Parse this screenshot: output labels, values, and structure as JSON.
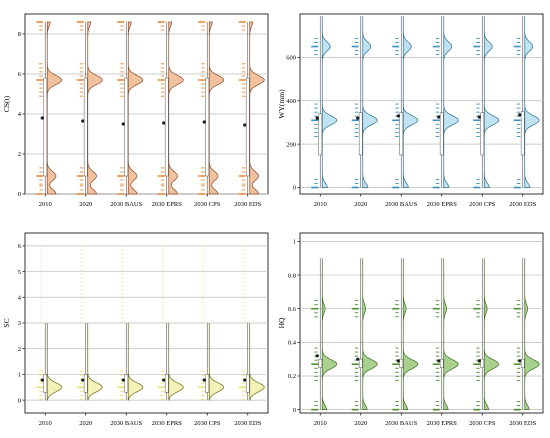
{
  "chart_data": [
    {
      "type": "violin",
      "panel": "top-left",
      "ylabel": "CS(t)",
      "ylim": [
        0,
        9
      ],
      "yticks": [
        0,
        2,
        4,
        6,
        8
      ],
      "grid": true,
      "fill_color": "#f2c29e",
      "line_color": "#8a4b2a",
      "rug_color": "#e58a3c",
      "categories": [
        "2010",
        "2020",
        "2030 BAUS",
        "2030 EPRS",
        "2030 CPS",
        "2030 EDS"
      ],
      "series": [
        {
          "category": "2010",
          "mean": 3.8,
          "q1": 0.9,
          "median": 5.6,
          "q3": 5.8,
          "whisker_low": 0.0,
          "whisker_high": 8.6,
          "modes": [
            0.0,
            0.9,
            5.7,
            8.6
          ],
          "mode_weights": [
            0.6,
            0.6,
            1.0,
            0.2
          ]
        },
        {
          "category": "2020",
          "mean": 3.65,
          "q1": 0.9,
          "median": 5.55,
          "q3": 5.8,
          "whisker_low": 0.0,
          "whisker_high": 8.6,
          "modes": [
            0.0,
            0.9,
            5.7,
            8.6
          ],
          "mode_weights": [
            0.6,
            0.6,
            1.0,
            0.2
          ]
        },
        {
          "category": "2030 BAUS",
          "mean": 3.5,
          "q1": 0.9,
          "median": 5.55,
          "q3": 5.8,
          "whisker_low": 0.0,
          "whisker_high": 8.6,
          "modes": [
            0.0,
            0.9,
            5.7,
            8.6
          ],
          "mode_weights": [
            0.6,
            0.6,
            1.0,
            0.2
          ]
        },
        {
          "category": "2030 EPRS",
          "mean": 3.55,
          "q1": 0.9,
          "median": 5.55,
          "q3": 5.8,
          "whisker_low": 0.0,
          "whisker_high": 8.6,
          "modes": [
            0.0,
            0.9,
            5.7,
            8.6
          ],
          "mode_weights": [
            0.6,
            0.6,
            1.0,
            0.2
          ]
        },
        {
          "category": "2030 CPS",
          "mean": 3.6,
          "q1": 0.9,
          "median": 5.55,
          "q3": 5.8,
          "whisker_low": 0.0,
          "whisker_high": 8.6,
          "modes": [
            0.0,
            0.9,
            5.7,
            8.6
          ],
          "mode_weights": [
            0.6,
            0.6,
            1.0,
            0.2
          ]
        },
        {
          "category": "2030 EDS",
          "mean": 3.45,
          "q1": 0.9,
          "median": 5.55,
          "q3": 5.8,
          "whisker_low": 0.0,
          "whisker_high": 8.6,
          "modes": [
            0.0,
            0.9,
            5.7,
            8.6
          ],
          "mode_weights": [
            0.6,
            0.6,
            1.0,
            0.2
          ]
        }
      ]
    },
    {
      "type": "violin",
      "panel": "top-right",
      "ylabel": "WY(mm)",
      "ylim": [
        -30,
        800
      ],
      "yticks": [
        0,
        200,
        400,
        600
      ],
      "grid": true,
      "fill_color": "#bfe3f2",
      "line_color": "#2d6f8f",
      "rug_color": "#3a8fc0",
      "categories": [
        "2010",
        "2020",
        "2030 BAUS",
        "2030 EPRS",
        "2030 CPS",
        "2030 EDS"
      ],
      "series": [
        {
          "category": "2010",
          "mean": 320,
          "q1": 150,
          "median": 300,
          "q3": 340,
          "whisker_low": 0,
          "whisker_high": 790,
          "modes": [
            0,
            310,
            650
          ],
          "mode_weights": [
            0.35,
            1.0,
            0.55
          ]
        },
        {
          "category": "2020",
          "mean": 320,
          "q1": 150,
          "median": 310,
          "q3": 345,
          "whisker_low": 0,
          "whisker_high": 790,
          "modes": [
            0,
            310,
            650
          ],
          "mode_weights": [
            0.35,
            1.0,
            0.55
          ]
        },
        {
          "category": "2030 BAUS",
          "mean": 330,
          "q1": 150,
          "median": 310,
          "q3": 345,
          "whisker_low": 0,
          "whisker_high": 790,
          "modes": [
            0,
            310,
            650
          ],
          "mode_weights": [
            0.35,
            1.0,
            0.55
          ]
        },
        {
          "category": "2030 EPRS",
          "mean": 325,
          "q1": 150,
          "median": 310,
          "q3": 345,
          "whisker_low": 0,
          "whisker_high": 790,
          "modes": [
            0,
            310,
            650
          ],
          "mode_weights": [
            0.35,
            1.0,
            0.55
          ]
        },
        {
          "category": "2030 CPS",
          "mean": 325,
          "q1": 150,
          "median": 310,
          "q3": 345,
          "whisker_low": 0,
          "whisker_high": 790,
          "modes": [
            0,
            310,
            650
          ],
          "mode_weights": [
            0.35,
            1.0,
            0.55
          ]
        },
        {
          "category": "2030 EDS",
          "mean": 335,
          "q1": 150,
          "median": 315,
          "q3": 350,
          "whisker_low": 0,
          "whisker_high": 790,
          "modes": [
            0,
            310,
            650
          ],
          "mode_weights": [
            0.35,
            1.0,
            0.55
          ]
        }
      ]
    },
    {
      "type": "violin",
      "panel": "bottom-left",
      "ylabel": "SC",
      "ylim": [
        -0.5,
        6.5
      ],
      "yticks": [
        0,
        1,
        2,
        3,
        4,
        5,
        6
      ],
      "grid": true,
      "fill_color": "#f4f2b8",
      "line_color": "#6e6a1e",
      "rug_color": "#e8e070",
      "categories": [
        "2010",
        "2020",
        "2030 BAUS",
        "2030 EPRS",
        "2030 CPS",
        "2030 EDS"
      ],
      "series": [
        {
          "category": "2010",
          "mean": 0.78,
          "q1": 0.3,
          "median": 0.55,
          "q3": 1.0,
          "whisker_low": 0.0,
          "whisker_high": 3.0,
          "modes": [
            0.5
          ],
          "mode_weights": [
            1.0
          ],
          "sparse_high": [
            1.2,
            1.6,
            2.0,
            2.5,
            3.0,
            3.6,
            4.2,
            4.8,
            5.4,
            6.0
          ]
        },
        {
          "category": "2020",
          "mean": 0.78,
          "q1": 0.3,
          "median": 0.55,
          "q3": 1.0,
          "whisker_low": 0.0,
          "whisker_high": 3.0,
          "modes": [
            0.5
          ],
          "mode_weights": [
            1.0
          ],
          "sparse_high": [
            1.2,
            1.6,
            2.0,
            2.5,
            3.0,
            3.6,
            4.2,
            4.8,
            5.4,
            6.0
          ]
        },
        {
          "category": "2030 BAUS",
          "mean": 0.78,
          "q1": 0.3,
          "median": 0.55,
          "q3": 1.0,
          "whisker_low": 0.0,
          "whisker_high": 3.0,
          "modes": [
            0.5
          ],
          "mode_weights": [
            1.0
          ],
          "sparse_high": [
            1.2,
            1.6,
            2.0,
            2.5,
            3.0,
            3.6,
            4.2,
            4.8,
            5.4,
            6.0
          ]
        },
        {
          "category": "2030 EPRS",
          "mean": 0.78,
          "q1": 0.3,
          "median": 0.55,
          "q3": 1.0,
          "whisker_low": 0.0,
          "whisker_high": 3.0,
          "modes": [
            0.5
          ],
          "mode_weights": [
            1.0
          ],
          "sparse_high": [
            1.2,
            1.6,
            2.0,
            2.5,
            3.0,
            3.6,
            4.2,
            4.8,
            5.4,
            6.0
          ]
        },
        {
          "category": "2030 CPS",
          "mean": 0.78,
          "q1": 0.3,
          "median": 0.55,
          "q3": 1.0,
          "whisker_low": 0.0,
          "whisker_high": 3.0,
          "modes": [
            0.5
          ],
          "mode_weights": [
            1.0
          ],
          "sparse_high": [
            1.2,
            1.6,
            2.0,
            2.5,
            3.0,
            3.6,
            4.2,
            4.8,
            5.4,
            6.0
          ]
        },
        {
          "category": "2030 EDS",
          "mean": 0.78,
          "q1": 0.3,
          "median": 0.55,
          "q3": 1.0,
          "whisker_low": 0.0,
          "whisker_high": 3.0,
          "modes": [
            0.5
          ],
          "mode_weights": [
            1.0
          ],
          "sparse_high": [
            1.2,
            1.6,
            2.0,
            2.5,
            3.0,
            3.6,
            4.2,
            4.8,
            5.4,
            6.0
          ]
        }
      ]
    },
    {
      "type": "violin",
      "panel": "bottom-right",
      "ylabel": "HQ",
      "ylim": [
        -0.02,
        1.05
      ],
      "yticks": [
        0.0,
        0.2,
        0.4,
        0.6,
        0.8,
        1.0
      ],
      "grid": true,
      "fill_color": "#a9d18e",
      "line_color": "#3d6b22",
      "rug_color": "#4f8f2e",
      "categories": [
        "2010",
        "2020",
        "2030 BAUS",
        "2030 EPRS",
        "2030 CPS",
        "2030 EDS"
      ],
      "series": [
        {
          "category": "2010",
          "mean": 0.32,
          "q1": 0.25,
          "median": 0.28,
          "q3": 0.3,
          "whisker_low": 0.0,
          "whisker_high": 0.9,
          "modes": [
            0.0,
            0.27,
            0.6
          ],
          "mode_weights": [
            0.3,
            1.0,
            0.2
          ]
        },
        {
          "category": "2020",
          "mean": 0.3,
          "q1": 0.25,
          "median": 0.28,
          "q3": 0.3,
          "whisker_low": 0.0,
          "whisker_high": 0.9,
          "modes": [
            0.0,
            0.27,
            0.6
          ],
          "mode_weights": [
            0.3,
            1.0,
            0.2
          ]
        },
        {
          "category": "2030 BAUS",
          "mean": 0.29,
          "q1": 0.25,
          "median": 0.28,
          "q3": 0.3,
          "whisker_low": 0.0,
          "whisker_high": 0.9,
          "modes": [
            0.0,
            0.27,
            0.6
          ],
          "mode_weights": [
            0.3,
            1.0,
            0.2
          ]
        },
        {
          "category": "2030 EPRS",
          "mean": 0.29,
          "q1": 0.25,
          "median": 0.28,
          "q3": 0.3,
          "whisker_low": 0.0,
          "whisker_high": 0.9,
          "modes": [
            0.0,
            0.27,
            0.6
          ],
          "mode_weights": [
            0.3,
            1.0,
            0.2
          ]
        },
        {
          "category": "2030 CPS",
          "mean": 0.29,
          "q1": 0.25,
          "median": 0.28,
          "q3": 0.3,
          "whisker_low": 0.0,
          "whisker_high": 0.9,
          "modes": [
            0.0,
            0.27,
            0.6
          ],
          "mode_weights": [
            0.3,
            1.0,
            0.2
          ]
        },
        {
          "category": "2030 EDS",
          "mean": 0.29,
          "q1": 0.25,
          "median": 0.28,
          "q3": 0.3,
          "whisker_low": 0.0,
          "whisker_high": 0.9,
          "modes": [
            0.0,
            0.27,
            0.6
          ],
          "mode_weights": [
            0.3,
            1.0,
            0.2
          ]
        }
      ]
    }
  ]
}
